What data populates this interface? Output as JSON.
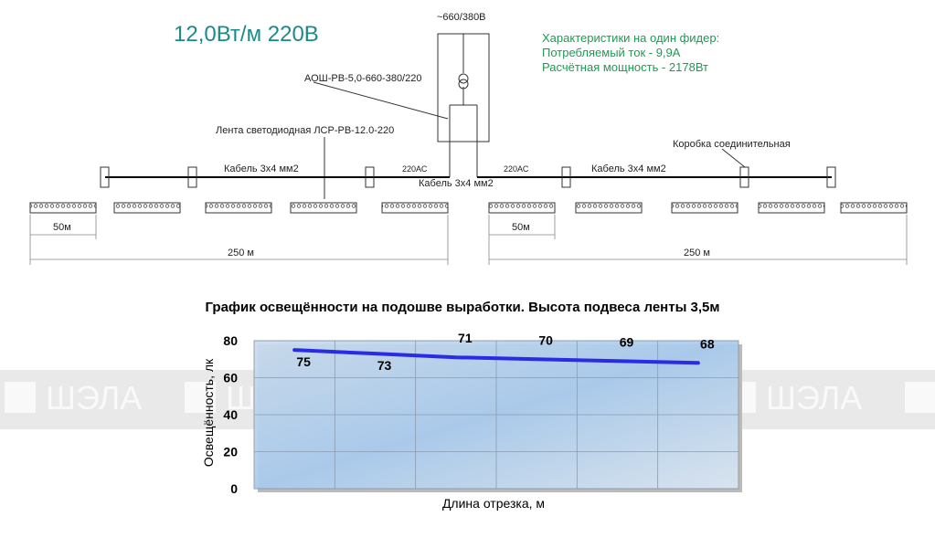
{
  "diagram": {
    "title": "12,0Вт/м 220В",
    "supply": "~660/380В",
    "device": "АОШ-РВ-5,0-660-380/220",
    "specs": [
      "Характеристики на один фидер:",
      "Потребляемый ток - 9,9А",
      "Расчётная мощность - 2178Вт"
    ],
    "strip_label": "Лента светодиодная ЛСР-РВ-12.0-220",
    "box_label": "Коробка соединительная",
    "cables": [
      "Кабель 3х4 мм2",
      "Кабель 3х4 мм2",
      "Кабель 3х4 мм2"
    ],
    "voltage_labels": [
      "220АС",
      "220АС"
    ],
    "dimensions": [
      "50м",
      "250 м",
      "50м",
      "250 м"
    ]
  },
  "watermark": "ШЭЛА",
  "chart_data": {
    "type": "line",
    "title": "График освещённости на подошве выработки. Высота подвеса ленты 3,5м",
    "x_label": "Длина отрезка, м",
    "y_label": "Освещённость, лк",
    "categories": [
      null,
      null,
      null,
      null,
      null,
      null
    ],
    "series": [
      {
        "name": null,
        "color": "#2b2be6",
        "values": [
          75,
          73,
          71,
          70,
          69,
          68
        ]
      }
    ],
    "ylim": [
      0,
      80
    ],
    "yticks": [
      0,
      20,
      40,
      60,
      80
    ],
    "grid": true
  }
}
